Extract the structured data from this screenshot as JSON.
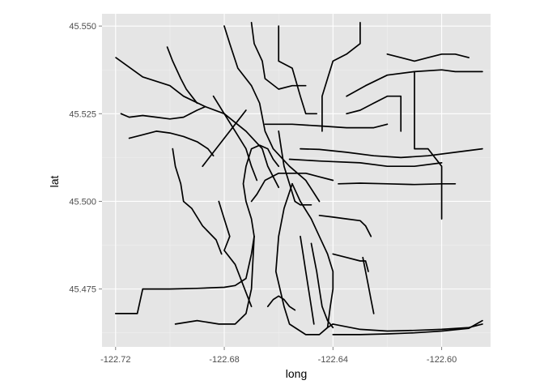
{
  "chart_data": {
    "type": "line",
    "title": "",
    "xlabel": "long",
    "ylabel": "lat",
    "xlim": [
      -122.725,
      -122.582
    ],
    "ylim": [
      45.4585,
      45.5535
    ],
    "x_ticks": [
      -122.72,
      -122.68,
      -122.64,
      -122.6
    ],
    "x_tick_labels": [
      "-122.72",
      "-122.68",
      "-122.64",
      "-122.60"
    ],
    "y_ticks": [
      45.475,
      45.5,
      45.525,
      45.55
    ],
    "y_tick_labels": [
      "45.475",
      "45.500",
      "45.525",
      "45.550"
    ],
    "grid": true,
    "legend": "none",
    "colors": {
      "panel": "#e5e5e5",
      "line": "#000000",
      "grid": "#ffffff"
    },
    "series": [
      {
        "x": [
          -122.7199,
          -122.71,
          -122.7,
          -122.695,
          -122.687,
          -122.68,
          -122.672,
          -122.666,
          -122.664,
          -122.66
        ],
        "y": [
          45.541,
          45.5355,
          45.533,
          45.53,
          45.527,
          45.525,
          45.52,
          45.515,
          45.51,
          45.504
        ]
      },
      {
        "x": [
          -122.68,
          -122.678,
          -122.675,
          -122.67,
          -122.667,
          -122.665,
          -122.662,
          -122.656,
          -122.65,
          -122.645
        ],
        "y": [
          45.55,
          45.545,
          45.538,
          45.533,
          45.528,
          45.52,
          45.515,
          45.51,
          45.506,
          45.5
        ]
      },
      {
        "x": [
          -122.655,
          -122.658,
          -122.66,
          -122.661,
          -122.658,
          -122.656,
          -122.65,
          -122.645,
          -122.642,
          -122.64
        ],
        "y": [
          45.505,
          45.498,
          45.49,
          45.48,
          45.47,
          45.465,
          45.462,
          45.462,
          45.464,
          45.465
        ]
      },
      {
        "x": [
          -122.655,
          -122.652,
          -122.648,
          -122.645,
          -122.642,
          -122.64,
          -122.64,
          -122.641,
          -122.642
        ],
        "y": [
          45.505,
          45.5,
          45.495,
          45.49,
          45.485,
          45.48,
          45.475,
          45.47,
          45.464
        ]
      },
      {
        "x": [
          -122.64,
          -122.63,
          -122.62,
          -122.61,
          -122.6,
          -122.59,
          -122.585
        ],
        "y": [
          45.465,
          45.4635,
          45.463,
          45.4632,
          45.4635,
          45.464,
          45.465
        ]
      },
      {
        "x": [
          -122.64,
          -122.63,
          -122.62,
          -122.61,
          -122.6,
          -122.59,
          -122.585
        ],
        "y": [
          45.462,
          45.462,
          45.4622,
          45.4625,
          45.463,
          45.4638,
          45.466
        ]
      },
      {
        "x": [
          -122.72,
          -122.712,
          -122.71,
          -122.7,
          -122.69,
          -122.68,
          -122.676,
          -122.672,
          -122.67,
          -122.669
        ],
        "y": [
          45.468,
          45.468,
          45.475,
          45.475,
          45.4752,
          45.4755,
          45.476,
          45.478,
          45.485,
          45.49
        ]
      },
      {
        "x": [
          -122.669,
          -122.67,
          -122.672,
          -122.673,
          -122.672,
          -122.67,
          -122.667,
          -122.664,
          -122.662,
          -122.66
        ],
        "y": [
          45.49,
          45.495,
          45.5,
          45.505,
          45.51,
          45.515,
          45.516,
          45.515,
          45.512,
          45.51
        ]
      },
      {
        "x": [
          -122.698,
          -122.69,
          -122.682,
          -122.676,
          -122.672,
          -122.67,
          -122.669
        ],
        "y": [
          45.465,
          45.466,
          45.465,
          45.465,
          45.468,
          45.475,
          45.49
        ]
      },
      {
        "x": [
          -122.652,
          -122.645,
          -122.635,
          -122.625,
          -122.615,
          -122.605,
          -122.595,
          -122.585
        ],
        "y": [
          45.515,
          45.5148,
          45.514,
          45.513,
          45.5125,
          45.513,
          45.514,
          45.515
        ]
      },
      {
        "x": [
          -122.656,
          -122.645,
          -122.63,
          -122.62,
          -122.61,
          -122.6
        ],
        "y": [
          45.512,
          45.5115,
          45.511,
          45.51,
          45.51,
          45.511
        ]
      },
      {
        "x": [
          -122.635,
          -122.628,
          -122.62,
          -122.61,
          -122.6,
          -122.595,
          -122.585
        ],
        "y": [
          45.53,
          45.533,
          45.536,
          45.537,
          45.5375,
          45.537,
          45.537
        ]
      },
      {
        "x": [
          -122.62,
          -122.615,
          -122.61,
          -122.605,
          -122.6,
          -122.595,
          -122.59
        ],
        "y": [
          45.542,
          45.541,
          45.54,
          45.541,
          45.542,
          45.542,
          45.541
        ]
      },
      {
        "x": [
          -122.665,
          -122.655,
          -122.645,
          -122.635,
          -122.625,
          -122.62
        ],
        "y": [
          45.522,
          45.522,
          45.5215,
          45.521,
          45.521,
          45.522
        ]
      },
      {
        "x": [
          -122.684,
          -122.68,
          -122.676,
          -122.672,
          -122.67,
          -122.668
        ],
        "y": [
          45.53,
          45.525,
          45.52,
          45.515,
          45.51,
          45.506
        ]
      },
      {
        "x": [
          -122.688,
          -122.684,
          -122.68,
          -122.676,
          -122.672
        ],
        "y": [
          45.51,
          45.514,
          45.518,
          45.522,
          45.526
        ]
      },
      {
        "x": [
          -122.718,
          -122.715,
          -122.71,
          -122.705,
          -122.7,
          -122.695,
          -122.69,
          -122.687
        ],
        "y": [
          45.525,
          45.524,
          45.5245,
          45.524,
          45.5235,
          45.524,
          45.526,
          45.527
        ]
      },
      {
        "x": [
          -122.715,
          -122.71,
          -122.705,
          -122.7,
          -122.695,
          -122.69,
          -122.686,
          -122.684
        ],
        "y": [
          45.518,
          45.519,
          45.52,
          45.5195,
          45.5185,
          45.517,
          45.515,
          45.513
        ]
      },
      {
        "x": [
          -122.699,
          -122.698,
          -122.696,
          -122.695,
          -122.692,
          -122.688,
          -122.683,
          -122.681
        ],
        "y": [
          45.515,
          45.51,
          45.505,
          45.5,
          45.498,
          45.493,
          45.489,
          45.485
        ]
      },
      {
        "x": [
          -122.682,
          -122.68,
          -122.678,
          -122.68,
          -122.676,
          -122.674,
          -122.672,
          -122.67
        ],
        "y": [
          45.5,
          45.495,
          45.49,
          45.486,
          45.482,
          45.478,
          45.474,
          45.47
        ]
      },
      {
        "x": [
          -122.638,
          -122.63,
          -122.62,
          -122.61,
          -122.6,
          -122.595
        ],
        "y": [
          45.505,
          45.5052,
          45.505,
          45.5048,
          45.505,
          45.505
        ]
      },
      {
        "x": [
          -122.645,
          -122.64,
          -122.635,
          -122.63,
          -122.628,
          -122.626
        ],
        "y": [
          45.496,
          45.4955,
          45.495,
          45.4945,
          45.493,
          45.49
        ]
      },
      {
        "x": [
          -122.64,
          -122.635,
          -122.63,
          -122.628,
          -122.627
        ],
        "y": [
          45.485,
          45.484,
          45.483,
          45.483,
          45.48
        ]
      },
      {
        "x": [
          -122.67,
          -122.669,
          -122.666,
          -122.665,
          -122.66,
          -122.655,
          -122.65
        ],
        "y": [
          45.551,
          45.545,
          45.54,
          45.535,
          45.532,
          45.533,
          45.533
        ]
      },
      {
        "x": [
          -122.644,
          -122.644,
          -122.642,
          -122.64,
          -122.635,
          -122.63,
          -122.63
        ],
        "y": [
          45.52,
          45.53,
          45.535,
          45.54,
          45.542,
          45.545,
          45.551
        ]
      },
      {
        "x": [
          -122.66,
          -122.66,
          -122.655,
          -122.652,
          -122.65,
          -122.646
        ],
        "y": [
          45.55,
          45.54,
          45.538,
          45.53,
          45.525,
          45.525
        ]
      },
      {
        "x": [
          -122.61,
          -122.61,
          -122.605,
          -122.6,
          -122.6
        ],
        "y": [
          45.537,
          45.515,
          45.515,
          45.51,
          45.495
        ]
      },
      {
        "x": [
          -122.67,
          -122.668,
          -122.665,
          -122.66,
          -122.655,
          -122.65,
          -122.645,
          -122.64
        ],
        "y": [
          45.5,
          45.502,
          45.506,
          45.508,
          45.508,
          45.508,
          45.507,
          45.506
        ]
      },
      {
        "x": [
          -122.66,
          -122.659,
          -122.658,
          -122.656,
          -122.654,
          -122.652,
          -122.65,
          -122.648
        ],
        "y": [
          45.52,
          45.515,
          45.51,
          45.505,
          45.5,
          45.499,
          45.499,
          45.499
        ]
      },
      {
        "x": [
          -122.648,
          -122.647,
          -122.646,
          -122.645,
          -122.644,
          -122.642,
          -122.64
        ],
        "y": [
          45.488,
          45.484,
          45.48,
          45.475,
          45.47,
          45.466,
          45.464
        ]
      },
      {
        "x": [
          -122.652,
          -122.651,
          -122.65,
          -122.649,
          -122.648,
          -122.647
        ],
        "y": [
          45.49,
          45.485,
          45.48,
          45.475,
          45.47,
          45.465
        ]
      },
      {
        "x": [
          -122.701,
          -122.699,
          -122.696,
          -122.694,
          -122.692,
          -122.69
        ],
        "y": [
          45.544,
          45.54,
          45.535,
          45.532,
          45.53,
          45.528
        ]
      },
      {
        "x": [
          -122.615,
          -122.615,
          -122.62,
          -122.625,
          -122.63,
          -122.635
        ],
        "y": [
          45.52,
          45.53,
          45.53,
          45.528,
          45.526,
          45.525
        ]
      },
      {
        "x": [
          -122.629,
          -122.628,
          -122.627,
          -122.626,
          -122.625
        ],
        "y": [
          45.484,
          45.48,
          45.476,
          45.472,
          45.468
        ]
      },
      {
        "x": [
          -122.664,
          -122.662,
          -122.66,
          -122.658,
          -122.656,
          -122.654
        ],
        "y": [
          45.47,
          45.472,
          45.473,
          45.472,
          45.47,
          45.469
        ]
      }
    ]
  }
}
